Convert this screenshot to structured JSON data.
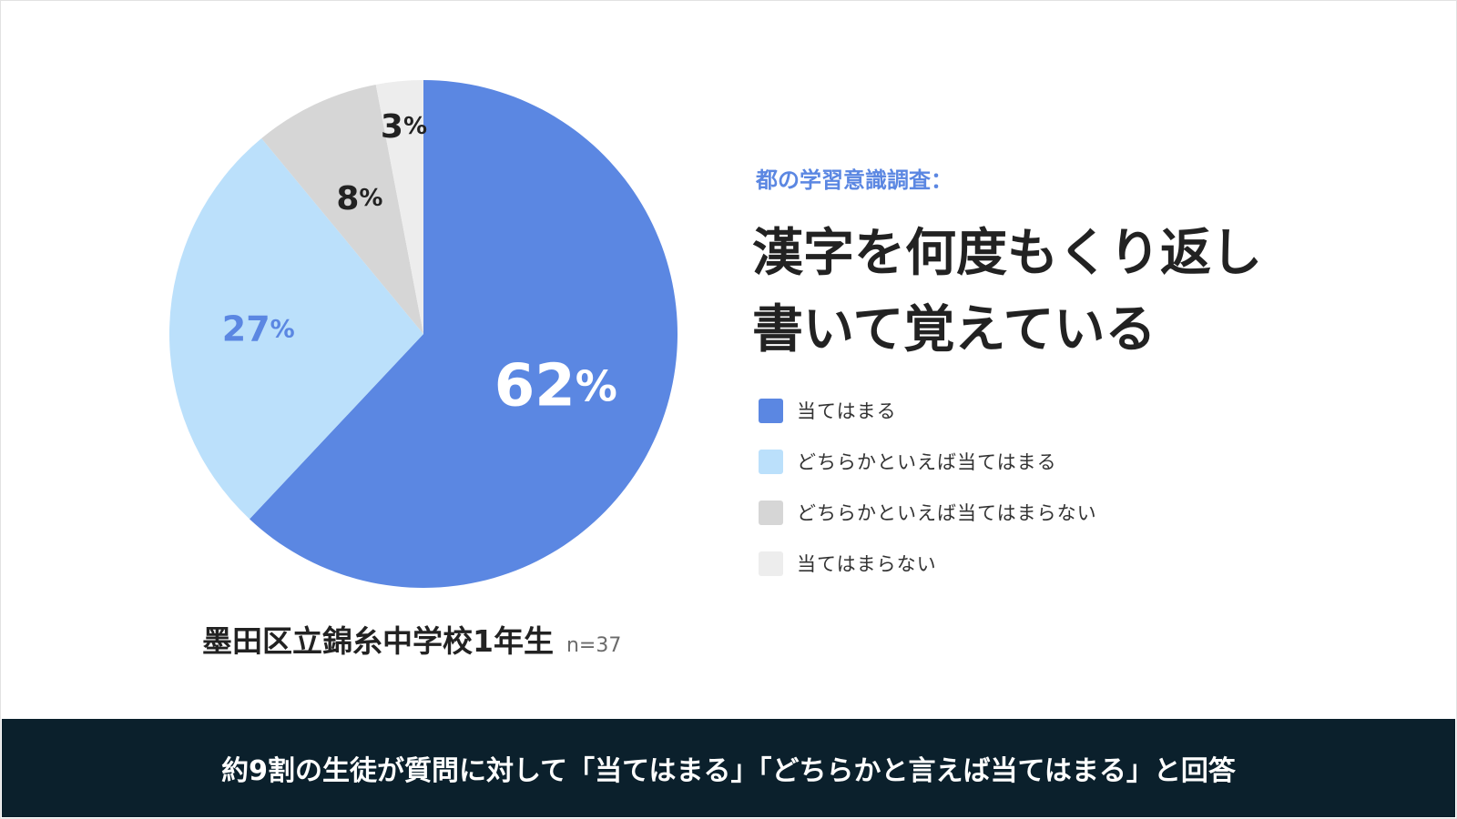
{
  "chart_data": {
    "type": "pie",
    "categories": [
      "当てはまる",
      "どちらかといえば当てはまる",
      "どちらかといえば当てはまらない",
      "当てはまらない"
    ],
    "values": [
      62,
      27,
      8,
      3
    ],
    "value_labels": [
      "62%",
      "27%",
      "8%",
      "3%"
    ],
    "colors": [
      "#5b87e2",
      "#bbe0fb",
      "#d6d6d6",
      "#ededed"
    ],
    "label_colors": [
      "#ffffff",
      "#5b87e2",
      "#222222",
      "#222222"
    ],
    "start": "top",
    "direction": "clockwise",
    "legend_position": "right"
  },
  "survey_title": "都の学習意識調査：",
  "headline": {
    "line1": "漢字を何度もくり返し",
    "line2": "書いて覚えている"
  },
  "legend": [
    {
      "label": "当てはまる",
      "color": "#5b87e2"
    },
    {
      "label": "どちらかといえば当てはまる",
      "color": "#bbe0fb"
    },
    {
      "label": "どちらかといえば当てはまらない",
      "color": "#d6d6d6"
    },
    {
      "label": "当てはまらない",
      "color": "#ededed"
    }
  ],
  "school": {
    "name": "墨田区立錦糸中学校1年生",
    "sample": "n=37"
  },
  "footer": {
    "text": "約9割の生徒が質問に対して「当てはまる」「どちらかと言えば当てはまる」と回答"
  },
  "colors": {
    "accent": "#5b87e2",
    "footer_bg": "#0b202c",
    "text": "#222222"
  }
}
